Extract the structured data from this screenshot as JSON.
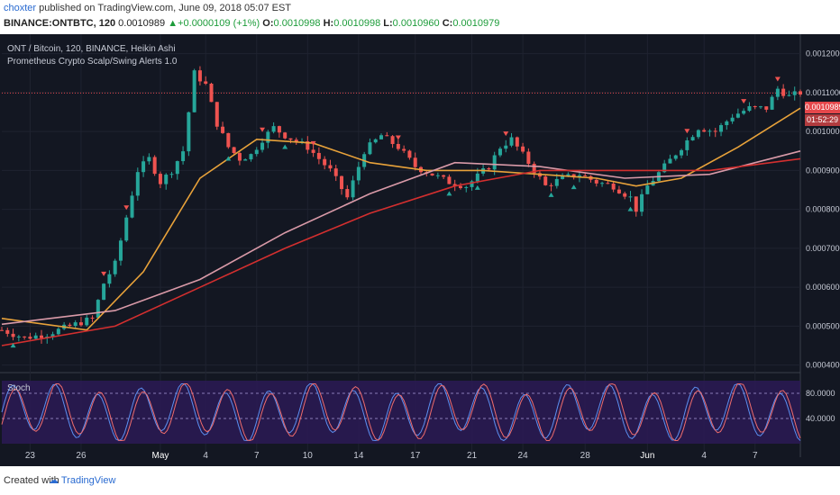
{
  "header": {
    "author": "choxter",
    "published_text": " published on TradingView.com, June 09, 2018 05:07 EST"
  },
  "ohlc": {
    "symbol": "BINANCE:ONTBTC, 120",
    "last": "0.0010989",
    "change": "+0.0000109 (+1%)",
    "o_label": "O:",
    "o": "0.0010998",
    "h_label": "H:",
    "h": "0.0010998",
    "l_label": "L:",
    "l": "0.0010960",
    "c_label": "C:",
    "c": "0.0010979"
  },
  "legend": {
    "title": "ONT / Bitcoin, 120, BINANCE, Heikin Ashi",
    "indicator": "Prometheus Crypto Scalp/Swing Alerts 1.0"
  },
  "stoch": {
    "label": "Stoch"
  },
  "price_badge": {
    "value": "0.0010989",
    "countdown": "01:52:29"
  },
  "footer": {
    "created": "Created with",
    "brand": "TradingView"
  },
  "colors": {
    "background": "#131722",
    "up": "#26a69a",
    "down": "#ef5350",
    "ma_orange": "#e8a23a",
    "ma_pink": "#d99aa8",
    "ma_red": "#d32f2f",
    "stoch_bg": "#2b1a55",
    "stoch_k": "#5b8ff0",
    "stoch_d": "#ef6c6c"
  },
  "chart_data": {
    "type": "candlestick",
    "price_axis": {
      "ticks": [
        "0.0012000",
        "0.0011000",
        "0.0010000",
        "0.0009000",
        "0.0008000",
        "0.0007000",
        "0.0006000",
        "0.0005000",
        "0.0004000"
      ],
      "ylim": [
        0.00039,
        0.00125
      ]
    },
    "stoch_axis": {
      "ticks": [
        "80.0000",
        "40.0000"
      ],
      "ylim": [
        0,
        100
      ]
    },
    "x_ticks": [
      "23",
      "26",
      "May",
      "4",
      "7",
      "10",
      "14",
      "17",
      "21",
      "24",
      "28",
      "Jun",
      "4",
      "7"
    ],
    "close_path": [
      [
        0,
        0.00049
      ],
      [
        4,
        0.00047
      ],
      [
        8,
        0.00048
      ],
      [
        12,
        0.0005
      ],
      [
        16,
        0.00052
      ],
      [
        18,
        0.00061
      ],
      [
        20,
        0.00066
      ],
      [
        22,
        0.00078
      ],
      [
        24,
        0.0009
      ],
      [
        26,
        0.00093
      ],
      [
        28,
        0.00087
      ],
      [
        30,
        0.0009
      ],
      [
        32,
        0.00095
      ],
      [
        34,
        0.00115
      ],
      [
        36,
        0.00112
      ],
      [
        38,
        0.00102
      ],
      [
        40,
        0.00096
      ],
      [
        42,
        0.00093
      ],
      [
        44,
        0.00094
      ],
      [
        46,
        0.00098
      ],
      [
        48,
        0.00101
      ],
      [
        50,
        0.00099
      ],
      [
        54,
        0.00096
      ],
      [
        58,
        0.0009
      ],
      [
        61,
        0.00083
      ],
      [
        64,
        0.00095
      ],
      [
        67,
        0.00099
      ],
      [
        70,
        0.00096
      ],
      [
        73,
        0.00091
      ],
      [
        76,
        0.00089
      ],
      [
        79,
        0.00087
      ],
      [
        82,
        0.00086
      ],
      [
        86,
        0.00091
      ],
      [
        88,
        0.00096
      ],
      [
        90,
        0.00098
      ],
      [
        93,
        0.00092
      ],
      [
        96,
        0.00086
      ],
      [
        99,
        0.00088
      ],
      [
        102,
        0.00089
      ],
      [
        105,
        0.00087
      ],
      [
        108,
        0.00086
      ],
      [
        111,
        0.00083
      ],
      [
        112,
        0.0008
      ],
      [
        114,
        0.00086
      ],
      [
        117,
        0.00091
      ],
      [
        120,
        0.00096
      ],
      [
        123,
        0.00101
      ],
      [
        126,
        0.001
      ],
      [
        129,
        0.00104
      ],
      [
        132,
        0.00106
      ],
      [
        135,
        0.00106
      ],
      [
        137,
        0.00111
      ],
      [
        139,
        0.00109
      ],
      [
        141,
        0.0011
      ]
    ],
    "overlays": [
      {
        "name": "",
        "color": "#e8a23a",
        "points": [
          [
            0,
            0.00052
          ],
          [
            15,
            0.00049
          ],
          [
            25,
            0.00064
          ],
          [
            35,
            0.00088
          ],
          [
            45,
            0.00098
          ],
          [
            55,
            0.00097
          ],
          [
            65,
            0.00092
          ],
          [
            75,
            0.0009
          ],
          [
            85,
            0.0009
          ],
          [
            95,
            0.00089
          ],
          [
            105,
            0.00088
          ],
          [
            112,
            0.00086
          ],
          [
            120,
            0.00088
          ],
          [
            130,
            0.00096
          ],
          [
            141,
            0.00106
          ]
        ]
      },
      {
        "name": "",
        "color": "#d99aa8",
        "points": [
          [
            0,
            0.000505
          ],
          [
            20,
            0.00054
          ],
          [
            35,
            0.00062
          ],
          [
            50,
            0.00074
          ],
          [
            65,
            0.00084
          ],
          [
            80,
            0.00092
          ],
          [
            95,
            0.00091
          ],
          [
            110,
            0.00088
          ],
          [
            125,
            0.00089
          ],
          [
            141,
            0.00095
          ]
        ]
      },
      {
        "name": "",
        "color": "#d32f2f",
        "points": [
          [
            0,
            0.00045
          ],
          [
            20,
            0.0005
          ],
          [
            35,
            0.0006
          ],
          [
            50,
            0.0007
          ],
          [
            65,
            0.00079
          ],
          [
            80,
            0.00086
          ],
          [
            95,
            0.0009
          ],
          [
            110,
            0.0009
          ],
          [
            125,
            0.0009
          ],
          [
            141,
            0.00093
          ]
        ]
      }
    ]
  }
}
